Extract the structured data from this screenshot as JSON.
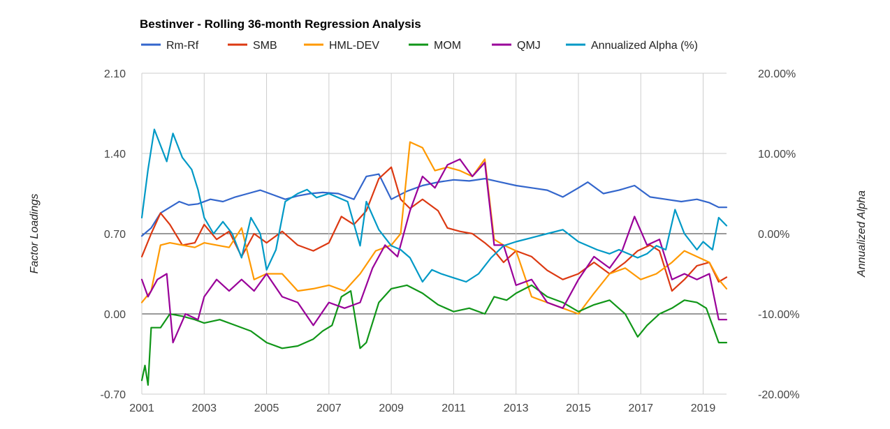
{
  "chart_data": {
    "type": "line",
    "title": "Bestinver - Rolling 36-month Regression Analysis",
    "ylabel_left": "Factor Loadings",
    "ylabel_right": "Annualized Alpha",
    "xlim": [
      2001.0,
      2019.75
    ],
    "ylim_left": [
      -0.7,
      2.1
    ],
    "ylim_right": [
      -20,
      20
    ],
    "x_ticks": [
      2001,
      2003,
      2005,
      2007,
      2009,
      2011,
      2013,
      2015,
      2017,
      2019
    ],
    "x_tick_labels": [
      "2001",
      "2003",
      "2005",
      "2007",
      "2009",
      "2011",
      "2013",
      "2015",
      "2017",
      "2019"
    ],
    "y_left_ticks": [
      -0.7,
      0.0,
      0.7,
      1.4,
      2.1
    ],
    "y_left_tick_labels": [
      "-0.70",
      "0.00",
      "0.70",
      "1.40",
      "2.10"
    ],
    "y_right_ticks": [
      -20,
      -10,
      0,
      10,
      20
    ],
    "y_right_tick_labels": [
      "-20.00%",
      "-10.00%",
      "0.00%",
      "10.00%",
      "20.00%"
    ],
    "grid": true,
    "legend_position": "top",
    "series": [
      {
        "name": "Rm-Rf",
        "color": "#3366cc",
        "axis": "left",
        "x": [
          2001.0,
          2001.3,
          2001.6,
          2001.9,
          2002.2,
          2002.5,
          2002.8,
          2003.2,
          2003.6,
          2004.0,
          2004.4,
          2004.8,
          2005.2,
          2005.6,
          2006.0,
          2006.4,
          2006.8,
          2007.3,
          2007.8,
          2008.2,
          2008.6,
          2009.0,
          2009.5,
          2010.0,
          2010.5,
          2011.0,
          2011.5,
          2012.0,
          2012.5,
          2013.0,
          2013.5,
          2014.0,
          2014.5,
          2015.0,
          2015.3,
          2015.8,
          2016.3,
          2016.8,
          2017.3,
          2017.8,
          2018.3,
          2018.8,
          2019.2,
          2019.5,
          2019.75
        ],
        "values": [
          0.68,
          0.75,
          0.88,
          0.93,
          0.98,
          0.95,
          0.96,
          1.0,
          0.98,
          1.02,
          1.05,
          1.08,
          1.04,
          1.0,
          1.03,
          1.05,
          1.06,
          1.05,
          1.0,
          1.2,
          1.22,
          1.0,
          1.07,
          1.12,
          1.15,
          1.17,
          1.16,
          1.18,
          1.15,
          1.12,
          1.1,
          1.08,
          1.02,
          1.1,
          1.15,
          1.05,
          1.08,
          1.12,
          1.02,
          1.0,
          0.98,
          1.0,
          0.97,
          0.93,
          0.93
        ]
      },
      {
        "name": "SMB",
        "color": "#dc3912",
        "axis": "left",
        "x": [
          2001.0,
          2001.3,
          2001.6,
          2001.9,
          2002.3,
          2002.7,
          2003.0,
          2003.4,
          2003.8,
          2004.2,
          2004.6,
          2005.0,
          2005.5,
          2006.0,
          2006.5,
          2007.0,
          2007.4,
          2007.8,
          2008.2,
          2008.6,
          2009.0,
          2009.3,
          2009.6,
          2010.0,
          2010.5,
          2010.8,
          2011.2,
          2011.6,
          2012.0,
          2012.3,
          2012.6,
          2013.0,
          2013.5,
          2014.0,
          2014.5,
          2015.0,
          2015.5,
          2016.0,
          2016.5,
          2016.9,
          2017.3,
          2017.6,
          2018.0,
          2018.4,
          2018.8,
          2019.2,
          2019.5,
          2019.75
        ],
        "values": [
          0.5,
          0.7,
          0.88,
          0.78,
          0.6,
          0.62,
          0.78,
          0.65,
          0.72,
          0.5,
          0.7,
          0.62,
          0.72,
          0.6,
          0.55,
          0.62,
          0.85,
          0.78,
          0.9,
          1.18,
          1.28,
          1.0,
          0.92,
          1.0,
          0.9,
          0.75,
          0.72,
          0.7,
          0.62,
          0.55,
          0.45,
          0.55,
          0.5,
          0.38,
          0.3,
          0.35,
          0.45,
          0.35,
          0.45,
          0.55,
          0.6,
          0.55,
          0.2,
          0.3,
          0.42,
          0.45,
          0.28,
          0.32
        ]
      },
      {
        "name": "HML-DEV",
        "color": "#ff9900",
        "axis": "left",
        "x": [
          2001.0,
          2001.3,
          2001.6,
          2001.9,
          2002.3,
          2002.7,
          2003.0,
          2003.4,
          2003.8,
          2004.2,
          2004.6,
          2005.0,
          2005.5,
          2006.0,
          2006.5,
          2007.0,
          2007.5,
          2008.0,
          2008.5,
          2009.0,
          2009.3,
          2009.6,
          2010.0,
          2010.4,
          2010.8,
          2011.2,
          2011.6,
          2012.0,
          2012.3,
          2012.6,
          2013.0,
          2013.5,
          2014.0,
          2014.5,
          2015.0,
          2015.5,
          2016.0,
          2016.5,
          2017.0,
          2017.5,
          2018.0,
          2018.4,
          2018.8,
          2019.2,
          2019.5,
          2019.75
        ],
        "values": [
          0.1,
          0.2,
          0.6,
          0.62,
          0.6,
          0.58,
          0.62,
          0.6,
          0.58,
          0.75,
          0.3,
          0.35,
          0.35,
          0.2,
          0.22,
          0.25,
          0.2,
          0.35,
          0.55,
          0.6,
          0.7,
          1.5,
          1.45,
          1.25,
          1.28,
          1.25,
          1.2,
          1.35,
          0.65,
          0.6,
          0.55,
          0.15,
          0.1,
          0.05,
          0.0,
          0.18,
          0.35,
          0.4,
          0.3,
          0.35,
          0.45,
          0.55,
          0.5,
          0.45,
          0.3,
          0.22
        ]
      },
      {
        "name": "MOM",
        "color": "#109618",
        "axis": "left",
        "x": [
          2001.0,
          2001.1,
          2001.2,
          2001.3,
          2001.6,
          2001.9,
          2002.3,
          2002.7,
          2003.0,
          2003.5,
          2004.0,
          2004.5,
          2005.0,
          2005.5,
          2006.0,
          2006.5,
          2006.8,
          2007.1,
          2007.4,
          2007.7,
          2008.0,
          2008.2,
          2008.6,
          2009.0,
          2009.5,
          2010.0,
          2010.5,
          2011.0,
          2011.5,
          2012.0,
          2012.3,
          2012.7,
          2013.0,
          2013.5,
          2014.0,
          2014.5,
          2015.0,
          2015.5,
          2016.0,
          2016.5,
          2016.9,
          2017.2,
          2017.6,
          2018.0,
          2018.4,
          2018.8,
          2019.1,
          2019.3,
          2019.5,
          2019.75
        ],
        "values": [
          -0.58,
          -0.45,
          -0.62,
          -0.12,
          -0.12,
          0.0,
          -0.02,
          -0.05,
          -0.08,
          -0.05,
          -0.1,
          -0.15,
          -0.25,
          -0.3,
          -0.28,
          -0.22,
          -0.15,
          -0.1,
          0.15,
          0.2,
          -0.3,
          -0.25,
          0.1,
          0.22,
          0.25,
          0.18,
          0.08,
          0.02,
          0.05,
          0.0,
          0.15,
          0.12,
          0.18,
          0.25,
          0.15,
          0.1,
          0.02,
          0.08,
          0.12,
          0.0,
          -0.2,
          -0.1,
          0.0,
          0.05,
          0.12,
          0.1,
          0.05,
          -0.1,
          -0.25,
          -0.25
        ]
      },
      {
        "name": "QMJ",
        "color": "#990099",
        "axis": "left",
        "x": [
          2001.0,
          2001.2,
          2001.5,
          2001.8,
          2002.0,
          2002.4,
          2002.8,
          2003.0,
          2003.4,
          2003.8,
          2004.2,
          2004.6,
          2005.0,
          2005.5,
          2006.0,
          2006.5,
          2007.0,
          2007.5,
          2008.0,
          2008.4,
          2008.8,
          2009.2,
          2009.6,
          2010.0,
          2010.4,
          2010.8,
          2011.2,
          2011.6,
          2012.0,
          2012.3,
          2012.6,
          2013.0,
          2013.5,
          2014.0,
          2014.5,
          2015.0,
          2015.5,
          2016.0,
          2016.4,
          2016.8,
          2017.2,
          2017.6,
          2018.0,
          2018.4,
          2018.8,
          2019.2,
          2019.5,
          2019.75
        ],
        "values": [
          0.3,
          0.15,
          0.3,
          0.35,
          -0.25,
          0.0,
          -0.05,
          0.15,
          0.3,
          0.2,
          0.3,
          0.2,
          0.35,
          0.15,
          0.1,
          -0.1,
          0.1,
          0.05,
          0.1,
          0.4,
          0.6,
          0.5,
          0.9,
          1.2,
          1.1,
          1.3,
          1.35,
          1.2,
          1.32,
          0.6,
          0.6,
          0.25,
          0.3,
          0.1,
          0.05,
          0.3,
          0.5,
          0.4,
          0.55,
          0.85,
          0.6,
          0.65,
          0.3,
          0.35,
          0.3,
          0.35,
          -0.05,
          -0.05
        ]
      },
      {
        "name": "Annualized Alpha (%)",
        "color": "#0099c6",
        "axis": "right",
        "x": [
          2001.0,
          2001.2,
          2001.4,
          2001.6,
          2001.8,
          2002.0,
          2002.3,
          2002.6,
          2002.8,
          2003.0,
          2003.3,
          2003.6,
          2003.9,
          2004.2,
          2004.5,
          2004.8,
          2005.0,
          2005.3,
          2005.6,
          2006.0,
          2006.3,
          2006.6,
          2007.0,
          2007.3,
          2007.6,
          2008.0,
          2008.2,
          2008.6,
          2009.0,
          2009.3,
          2009.6,
          2010.0,
          2010.3,
          2010.6,
          2011.0,
          2011.4,
          2011.8,
          2012.2,
          2012.6,
          2013.0,
          2013.5,
          2014.0,
          2014.5,
          2015.0,
          2015.3,
          2015.6,
          2016.0,
          2016.3,
          2016.6,
          2016.9,
          2017.2,
          2017.5,
          2017.8,
          2018.1,
          2018.4,
          2018.8,
          2019.0,
          2019.3,
          2019.5,
          2019.75
        ],
        "values": [
          2.0,
          8.0,
          13.0,
          11.0,
          9.0,
          12.5,
          9.5,
          8.0,
          5.5,
          2.0,
          0.0,
          1.5,
          0.0,
          -3.0,
          2.0,
          0.0,
          -4.5,
          -2.0,
          4.0,
          5.0,
          5.5,
          4.5,
          5.0,
          4.5,
          4.0,
          -1.5,
          4.0,
          0.5,
          -1.5,
          -2.0,
          -3.0,
          -6.0,
          -4.5,
          -5.0,
          -5.5,
          -6.0,
          -5.0,
          -3.0,
          -1.5,
          -1.0,
          -0.5,
          0.0,
          0.5,
          -1.0,
          -1.5,
          -2.0,
          -2.5,
          -2.0,
          -2.5,
          -3.0,
          -2.5,
          -1.5,
          -2.0,
          3.0,
          0.0,
          -2.0,
          -1.0,
          -2.0,
          2.0,
          1.0
        ]
      }
    ]
  }
}
